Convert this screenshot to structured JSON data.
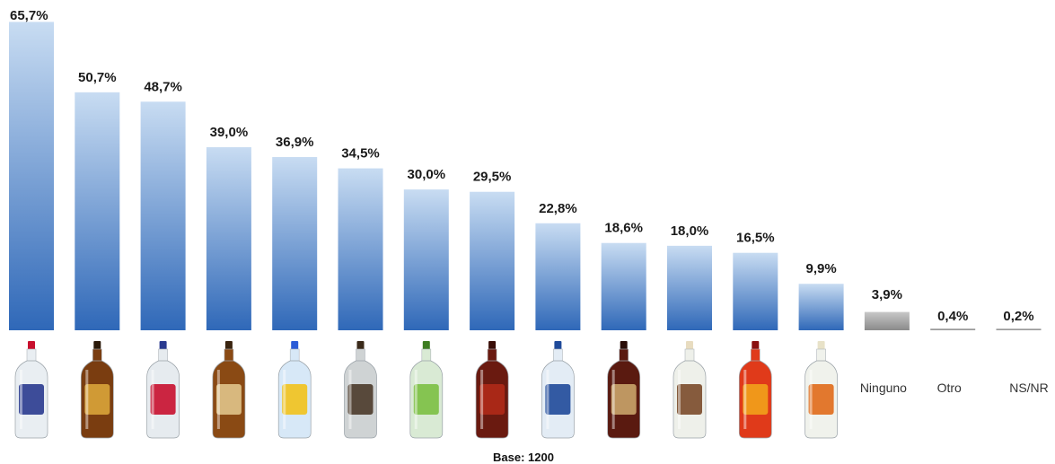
{
  "chart_data": {
    "type": "bar",
    "categories": [
      "",
      "",
      "",
      "",
      "",
      "",
      "",
      "",
      "",
      "",
      "",
      "",
      "",
      "Ninguno",
      "Otro",
      "NS/NR"
    ],
    "values": [
      65.7,
      50.7,
      48.7,
      39.0,
      36.9,
      34.5,
      30.0,
      29.5,
      22.8,
      18.6,
      18.0,
      16.5,
      9.9,
      3.9,
      0.4,
      0.2
    ],
    "value_labels": [
      "65,7%",
      "50,7%",
      "48,7%",
      "39,0%",
      "36,9%",
      "34,5%",
      "30,0%",
      "29,5%",
      "22,8%",
      "18,6%",
      "18,0%",
      "16,5%",
      "9,9%",
      "3,9%",
      "0,4%",
      "0,2%"
    ],
    "category_icons": [
      "bottle-icon",
      "bottle-icon",
      "bottle-icon",
      "bottle-icon",
      "bottle-icon",
      "bottle-icon",
      "bottle-icon",
      "bottle-icon",
      "bottle-icon",
      "bottle-icon",
      "bottle-icon",
      "bottle-icon",
      "bottle-icon",
      "",
      "",
      ""
    ],
    "bottle_styles": [
      {
        "glass": "#e9eef2",
        "label": "#2a3a8f",
        "cap": "#c8102e"
      },
      {
        "glass": "#7a3d10",
        "label": "#d9a43a",
        "cap": "#2b1a0a"
      },
      {
        "glass": "#e6ebef",
        "label": "#c8102e",
        "cap": "#2a3a8f"
      },
      {
        "glass": "#8a4a14",
        "label": "#e0c48a",
        "cap": "#3a2410"
      },
      {
        "glass": "#d7e8f7",
        "label": "#f2c21b",
        "cap": "#2a5bd7"
      },
      {
        "glass": "#cfd3d4",
        "label": "#4a3a2a",
        "cap": "#3a2a1a"
      },
      {
        "glass": "#d9ead4",
        "label": "#7bc043",
        "cap": "#3e7d22"
      },
      {
        "glass": "#6a1a10",
        "label": "#b02a18",
        "cap": "#3a0e08"
      },
      {
        "glass": "#e3ecf5",
        "label": "#1f4a9a",
        "cap": "#1f4a9a"
      },
      {
        "glass": "#5a1a10",
        "label": "#c9a46a",
        "cap": "#2a0d08"
      },
      {
        "glass": "#eef0ea",
        "label": "#7a4a2a",
        "cap": "#e8dcc0"
      },
      {
        "glass": "#e03a1a",
        "label": "#f2a21b",
        "cap": "#8a1010"
      },
      {
        "glass": "#f0f2ec",
        "label": "#e06a1a",
        "cap": "#e8e2c8"
      }
    ],
    "ylim": [
      0,
      70
    ],
    "colors": {
      "bar_top": "#c8dcf2",
      "bar_bottom": "#2f68b8",
      "grey_top": "#c8c8c8",
      "grey_bottom": "#8a8a8a"
    },
    "base_label": "Base: 1200"
  }
}
